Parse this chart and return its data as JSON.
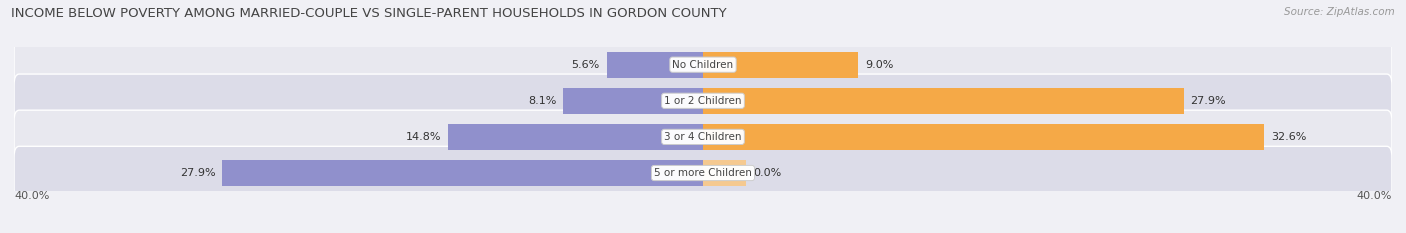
{
  "title": "INCOME BELOW POVERTY AMONG MARRIED-COUPLE VS SINGLE-PARENT HOUSEHOLDS IN GORDON COUNTY",
  "source": "Source: ZipAtlas.com",
  "categories": [
    "No Children",
    "1 or 2 Children",
    "3 or 4 Children",
    "5 or more Children"
  ],
  "married_values": [
    5.6,
    8.1,
    14.8,
    27.9
  ],
  "single_values": [
    9.0,
    27.9,
    32.6,
    0.0
  ],
  "married_color": "#9090cc",
  "single_color": "#f5a947",
  "single_color_light": "#f5c990",
  "bg_color": "#f0f0f5",
  "row_bg_odd": "#e8e8ef",
  "row_bg_even": "#dcdce8",
  "xlim": 40.0,
  "axis_label": "40.0%",
  "title_fontsize": 9.5,
  "source_fontsize": 7.5,
  "bar_label_fontsize": 8,
  "cat_fontsize": 7.5,
  "legend_fontsize": 8
}
